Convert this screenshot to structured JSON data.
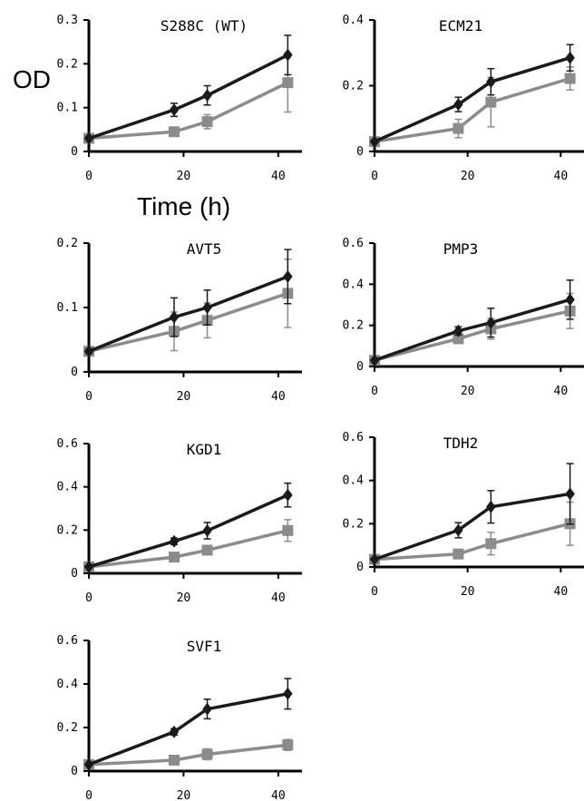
{
  "figure": {
    "ylabel": "OD",
    "xlabel": "Time (h)",
    "colors": {
      "dark": "#1a1a1a",
      "gray": "#8c8c8c",
      "axis": "#000000"
    }
  },
  "chart_data": [
    {
      "type": "line",
      "title": "S288C (WT)",
      "x": [
        0,
        18,
        25,
        42
      ],
      "xlim": [
        0,
        45
      ],
      "ylim": [
        0,
        0.3
      ],
      "xticks": [
        "0",
        "20",
        "40"
      ],
      "yticks": [
        "0",
        "0.1",
        "0.2",
        "0.3"
      ],
      "series": [
        {
          "marker": "diamond",
          "color": "#1a1a1a",
          "values": [
            0.03,
            0.095,
            0.128,
            0.22
          ],
          "errors": [
            0.003,
            0.015,
            0.022,
            0.045
          ]
        },
        {
          "marker": "square",
          "color": "#8c8c8c",
          "values": [
            0.03,
            0.045,
            0.068,
            0.157
          ],
          "errors": [
            0.003,
            0.005,
            0.016,
            0.067
          ]
        }
      ]
    },
    {
      "type": "line",
      "title": "ECM21",
      "x": [
        0,
        18,
        25,
        42
      ],
      "xlim": [
        0,
        45
      ],
      "ylim": [
        0,
        0.4
      ],
      "xticks": [
        "0",
        "20",
        "40"
      ],
      "yticks": [
        "0",
        "0.2",
        "0.4"
      ],
      "series": [
        {
          "marker": "diamond",
          "color": "#1a1a1a",
          "values": [
            0.03,
            0.143,
            0.212,
            0.285
          ],
          "errors": [
            0.003,
            0.022,
            0.04,
            0.04
          ]
        },
        {
          "marker": "square",
          "color": "#8c8c8c",
          "values": [
            0.03,
            0.07,
            0.15,
            0.222
          ],
          "errors": [
            0.003,
            0.028,
            0.075,
            0.035
          ]
        }
      ]
    },
    {
      "type": "line",
      "title": "AVT5",
      "x": [
        0,
        18,
        25,
        42
      ],
      "xlim": [
        0,
        45
      ],
      "ylim": [
        0,
        0.2
      ],
      "xticks": [
        "0",
        "20",
        "40"
      ],
      "yticks": [
        "0",
        "0.1",
        "0.2"
      ],
      "series": [
        {
          "marker": "diamond",
          "color": "#1a1a1a",
          "values": [
            0.032,
            0.085,
            0.1,
            0.148
          ],
          "errors": [
            0.003,
            0.03,
            0.027,
            0.042
          ]
        },
        {
          "marker": "square",
          "color": "#8c8c8c",
          "values": [
            0.032,
            0.063,
            0.08,
            0.122
          ],
          "errors": [
            0.003,
            0.03,
            0.027,
            0.053
          ]
        }
      ]
    },
    {
      "type": "line",
      "title": "PMP3",
      "x": [
        0,
        18,
        25,
        42
      ],
      "xlim": [
        0,
        45
      ],
      "ylim": [
        0,
        0.6
      ],
      "xticks": [
        "0",
        "20",
        "40"
      ],
      "yticks": [
        "0",
        "0.2",
        "0.4",
        "0.6"
      ],
      "series": [
        {
          "marker": "diamond",
          "color": "#1a1a1a",
          "values": [
            0.03,
            0.173,
            0.213,
            0.325
          ],
          "errors": [
            0.005,
            0.02,
            0.07,
            0.095
          ]
        },
        {
          "marker": "square",
          "color": "#8c8c8c",
          "values": [
            0.03,
            0.135,
            0.183,
            0.27
          ],
          "errors": [
            0.005,
            0.015,
            0.05,
            0.085
          ]
        }
      ]
    },
    {
      "type": "line",
      "title": "KGD1",
      "x": [
        0,
        18,
        25,
        42
      ],
      "xlim": [
        0,
        45
      ],
      "ylim": [
        0,
        0.6
      ],
      "xticks": [
        "0",
        "20",
        "40"
      ],
      "yticks": [
        "0",
        "0.2",
        "0.4",
        "0.6"
      ],
      "series": [
        {
          "marker": "diamond",
          "color": "#1a1a1a",
          "values": [
            0.03,
            0.148,
            0.197,
            0.362
          ],
          "errors": [
            0.005,
            0.015,
            0.038,
            0.055
          ]
        },
        {
          "marker": "square",
          "color": "#8c8c8c",
          "values": [
            0.03,
            0.075,
            0.107,
            0.198
          ],
          "errors": [
            0.005,
            0.01,
            0.012,
            0.05
          ]
        }
      ]
    },
    {
      "type": "line",
      "title": "TDH2",
      "x": [
        0,
        18,
        25,
        42
      ],
      "xlim": [
        0,
        45
      ],
      "ylim": [
        0,
        0.6
      ],
      "xticks": [
        "0",
        "20",
        "40"
      ],
      "yticks": [
        "0",
        "0.2",
        "0.4",
        "0.6"
      ],
      "series": [
        {
          "marker": "diamond",
          "color": "#1a1a1a",
          "values": [
            0.035,
            0.17,
            0.278,
            0.338
          ],
          "errors": [
            0.005,
            0.035,
            0.075,
            0.14
          ]
        },
        {
          "marker": "square",
          "color": "#8c8c8c",
          "values": [
            0.035,
            0.06,
            0.108,
            0.2
          ],
          "errors": [
            0.005,
            0.008,
            0.052,
            0.1
          ]
        }
      ]
    },
    {
      "type": "line",
      "title": "SVF1",
      "x": [
        0,
        18,
        25,
        42
      ],
      "xlim": [
        0,
        45
      ],
      "ylim": [
        0,
        0.6
      ],
      "xticks": [
        "0",
        "20",
        "40"
      ],
      "yticks": [
        "0",
        "0.2",
        "0.4",
        "0.6"
      ],
      "series": [
        {
          "marker": "diamond",
          "color": "#1a1a1a",
          "values": [
            0.03,
            0.18,
            0.285,
            0.355
          ],
          "errors": [
            0.005,
            0.015,
            0.045,
            0.07
          ]
        },
        {
          "marker": "square",
          "color": "#8c8c8c",
          "values": [
            0.03,
            0.05,
            0.077,
            0.12
          ],
          "errors": [
            0.005,
            0.005,
            0.025,
            0.025
          ]
        }
      ]
    }
  ]
}
